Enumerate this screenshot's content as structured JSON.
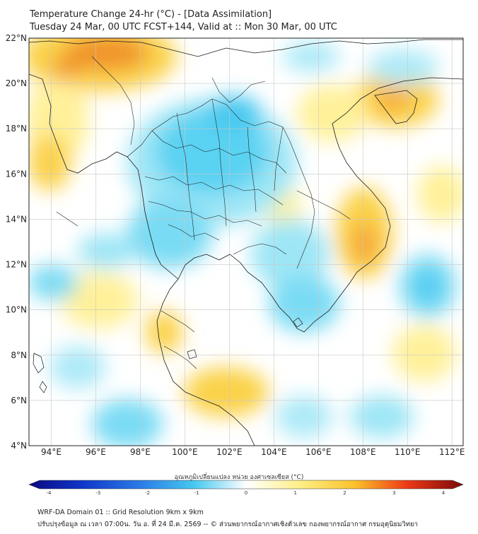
{
  "header": {
    "title_line1": "Temperature Change 24-hr (°C) - [Data Assimilation]",
    "title_line2": "Tuesday 24 Mar, 00 UTC FCST+144, Valid at :: Mon 30 Mar, 00 UTC"
  },
  "map": {
    "lat_labels": [
      "22°N",
      "20°N",
      "18°N",
      "16°N",
      "14°N",
      "12°N",
      "10°N",
      "8°N",
      "6°N",
      "4°N"
    ],
    "lon_labels": [
      "94°E",
      "96°E",
      "98°E",
      "100°E",
      "102°E",
      "104°E",
      "106°E",
      "108°E",
      "110°E",
      "112°E"
    ],
    "lat_range": [
      4,
      22
    ],
    "lon_range": [
      93,
      112.5
    ],
    "gridlines": true,
    "field_palette": {
      "neg_strong": "#1a6fe0",
      "neg_mid": "#46c8f0",
      "neg_light": "#aeeaf8",
      "neutral": "#ffffff",
      "pos_light": "#fff4a8",
      "pos_mid": "#fbd24a",
      "pos_strong": "#f08a28",
      "pos_max": "#e85a35"
    }
  },
  "colorbar": {
    "title": "อุณหภูมิเปลี่ยนแปลง หน่วย องศาเซลเซียส (°C)",
    "ticks": [
      "-4",
      "-3",
      "-2",
      "-1",
      "0",
      "1",
      "2",
      "3",
      "4"
    ],
    "range": [
      -4,
      4
    ]
  },
  "footer": {
    "line1": "WRF-DA Domain 01 :: Grid Resolution 9km x 9km",
    "line2": "ปรับปรุงข้อมูล ณ เวลา 07:00น. วัน อ. ที่ 24 มี.ค. 2569 -- © ส่วนพยากรณ์อากาศเชิงตัวเลข กองพยากรณ์อากาศ กรมอุตุนิยมวิทยา"
  }
}
